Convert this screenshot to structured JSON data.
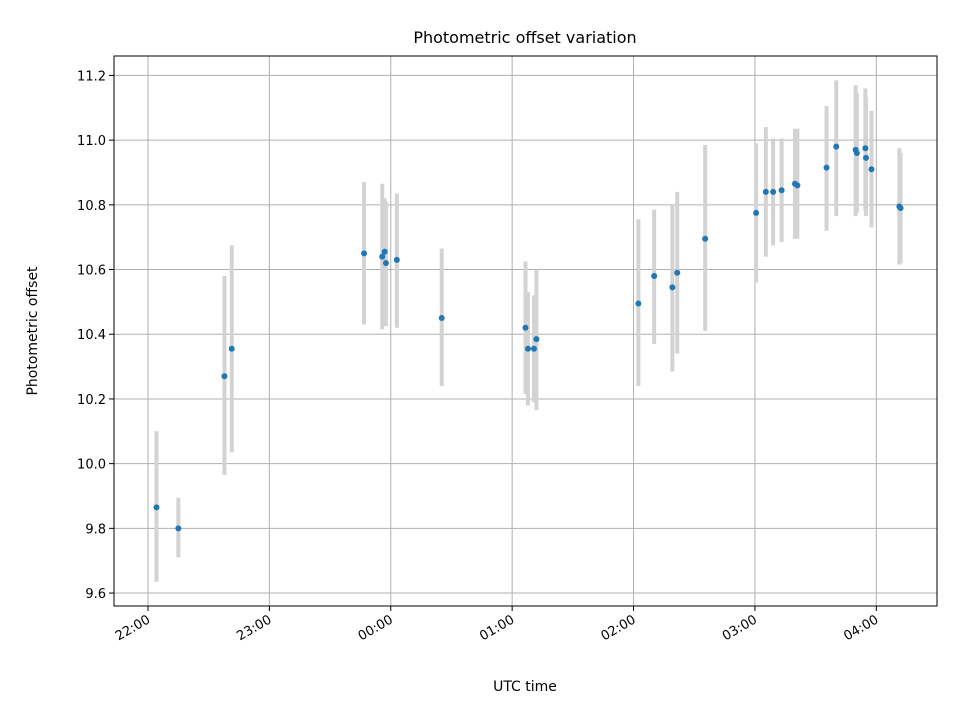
{
  "chart_data": {
    "type": "scatter",
    "title": "Photometric offset variation",
    "xlabel": "UTC time",
    "ylabel": "Photometric offset",
    "x_unit": "hours (UTC, continuing past midnight)",
    "xlim": [
      21.72,
      28.5
    ],
    "ylim": [
      9.56,
      11.26
    ],
    "x_ticks": [
      {
        "value": 22,
        "label": "22:00"
      },
      {
        "value": 23,
        "label": "23:00"
      },
      {
        "value": 24,
        "label": "00:00"
      },
      {
        "value": 25,
        "label": "01:00"
      },
      {
        "value": 26,
        "label": "02:00"
      },
      {
        "value": 27,
        "label": "03:00"
      },
      {
        "value": 28,
        "label": "04:00"
      }
    ],
    "y_ticks": [
      {
        "value": 9.6,
        "label": "9.6"
      },
      {
        "value": 9.8,
        "label": "9.8"
      },
      {
        "value": 10.0,
        "label": "10.0"
      },
      {
        "value": 10.2,
        "label": "10.2"
      },
      {
        "value": 10.4,
        "label": "10.4"
      },
      {
        "value": 10.6,
        "label": "10.6"
      },
      {
        "value": 10.8,
        "label": "10.8"
      },
      {
        "value": 11.0,
        "label": "11.0"
      },
      {
        "value": 11.2,
        "label": "11.2"
      }
    ],
    "grid": true,
    "colors": {
      "point": "#1f77b4",
      "errorbar": "#d3d3d3",
      "grid": "#b0b0b0"
    },
    "points": [
      {
        "x": 22.07,
        "y": 9.865,
        "ylow": 9.635,
        "yhigh": 10.1
      },
      {
        "x": 22.25,
        "y": 9.8,
        "ylow": 9.71,
        "yhigh": 9.895
      },
      {
        "x": 22.63,
        "y": 10.27,
        "ylow": 9.965,
        "yhigh": 10.58
      },
      {
        "x": 22.69,
        "y": 10.355,
        "ylow": 10.035,
        "yhigh": 10.675
      },
      {
        "x": 23.78,
        "y": 10.65,
        "ylow": 10.43,
        "yhigh": 10.87
      },
      {
        "x": 23.93,
        "y": 10.64,
        "ylow": 10.415,
        "yhigh": 10.865
      },
      {
        "x": 23.95,
        "y": 10.655,
        "ylow": 10.43,
        "yhigh": 10.82
      },
      {
        "x": 23.96,
        "y": 10.62,
        "ylow": 10.425,
        "yhigh": 10.81
      },
      {
        "x": 24.05,
        "y": 10.63,
        "ylow": 10.42,
        "yhigh": 10.835
      },
      {
        "x": 24.42,
        "y": 10.45,
        "ylow": 10.24,
        "yhigh": 10.665
      },
      {
        "x": 25.11,
        "y": 10.42,
        "ylow": 10.215,
        "yhigh": 10.625
      },
      {
        "x": 25.13,
        "y": 10.355,
        "ylow": 10.18,
        "yhigh": 10.53
      },
      {
        "x": 25.18,
        "y": 10.355,
        "ylow": 10.19,
        "yhigh": 10.52
      },
      {
        "x": 25.2,
        "y": 10.385,
        "ylow": 10.165,
        "yhigh": 10.6
      },
      {
        "x": 26.04,
        "y": 10.495,
        "ylow": 10.24,
        "yhigh": 10.755
      },
      {
        "x": 26.17,
        "y": 10.58,
        "ylow": 10.37,
        "yhigh": 10.785
      },
      {
        "x": 26.32,
        "y": 10.545,
        "ylow": 10.285,
        "yhigh": 10.8
      },
      {
        "x": 26.36,
        "y": 10.59,
        "ylow": 10.34,
        "yhigh": 10.84
      },
      {
        "x": 26.59,
        "y": 10.695,
        "ylow": 10.41,
        "yhigh": 10.985
      },
      {
        "x": 27.01,
        "y": 10.775,
        "ylow": 10.56,
        "yhigh": 10.99
      },
      {
        "x": 27.09,
        "y": 10.84,
        "ylow": 10.64,
        "yhigh": 11.04
      },
      {
        "x": 27.15,
        "y": 10.84,
        "ylow": 10.675,
        "yhigh": 11.005
      },
      {
        "x": 27.22,
        "y": 10.845,
        "ylow": 10.685,
        "yhigh": 11.005
      },
      {
        "x": 27.33,
        "y": 10.865,
        "ylow": 10.695,
        "yhigh": 11.035
      },
      {
        "x": 27.35,
        "y": 10.86,
        "ylow": 10.695,
        "yhigh": 11.035
      },
      {
        "x": 27.59,
        "y": 10.915,
        "ylow": 10.72,
        "yhigh": 11.105
      },
      {
        "x": 27.67,
        "y": 10.98,
        "ylow": 10.765,
        "yhigh": 11.185
      },
      {
        "x": 27.83,
        "y": 10.97,
        "ylow": 10.765,
        "yhigh": 11.17
      },
      {
        "x": 27.84,
        "y": 10.96,
        "ylow": 10.775,
        "yhigh": 11.145
      },
      {
        "x": 27.91,
        "y": 10.975,
        "ylow": 10.78,
        "yhigh": 11.16
      },
      {
        "x": 27.915,
        "y": 10.945,
        "ylow": 10.765,
        "yhigh": 11.13
      },
      {
        "x": 27.96,
        "y": 10.91,
        "ylow": 10.73,
        "yhigh": 11.09
      },
      {
        "x": 28.19,
        "y": 10.795,
        "ylow": 10.615,
        "yhigh": 10.975
      },
      {
        "x": 28.2,
        "y": 10.79,
        "ylow": 10.62,
        "yhigh": 10.96
      }
    ]
  }
}
